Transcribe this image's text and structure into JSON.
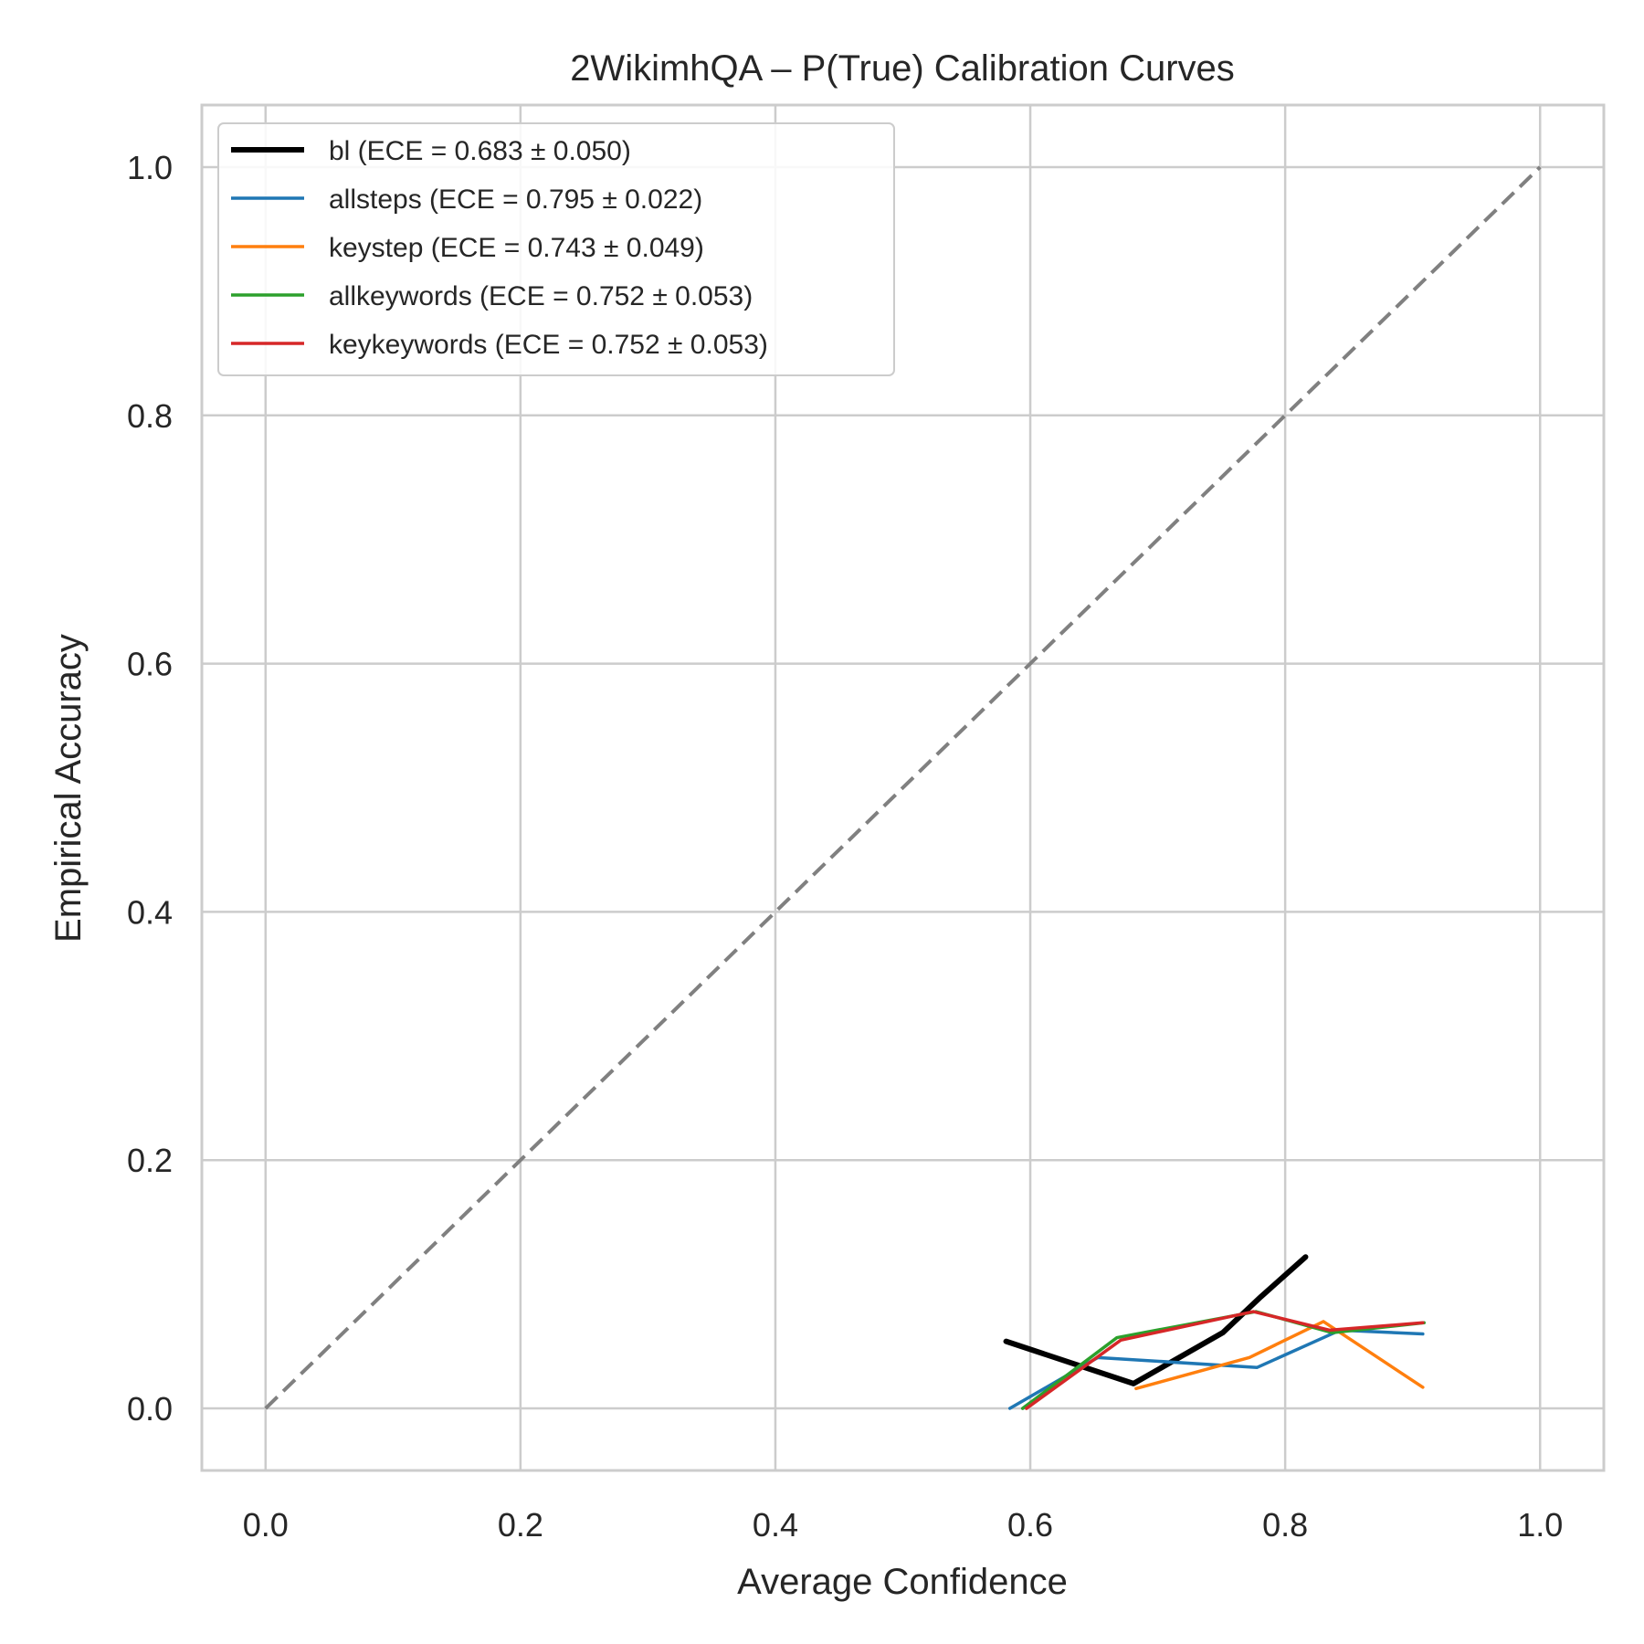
{
  "chart_data": {
    "type": "line",
    "title": "2WikimhQA – P(True) Calibration Curves",
    "xlabel": "Average Confidence",
    "ylabel": "Empirical Accuracy",
    "xlim": [
      -0.05,
      1.05
    ],
    "ylim": [
      -0.05,
      1.05
    ],
    "xticks": [
      0.0,
      0.2,
      0.4,
      0.6,
      0.8,
      1.0
    ],
    "yticks": [
      0.0,
      0.2,
      0.4,
      0.6,
      0.8,
      1.0
    ],
    "tick_labels": [
      "0.0",
      "0.2",
      "0.4",
      "0.6",
      "0.8",
      "1.0"
    ],
    "grid": true,
    "legend_position": "top-left",
    "reference_line": {
      "x": [
        0.0,
        1.0
      ],
      "y": [
        0.0,
        1.0
      ],
      "color": "#808080",
      "style": "dashed"
    },
    "series": [
      {
        "name": "bl (ECE = 0.683 ± 0.050)",
        "color": "#000000",
        "width": 6,
        "x": [
          0.581,
          0.681,
          0.751,
          0.781,
          0.816
        ],
        "y": [
          0.054,
          0.02,
          0.061,
          0.09,
          0.122
        ]
      },
      {
        "name": "allsteps (ECE = 0.795 ± 0.022)",
        "color": "#1f77b4",
        "width": 3.5,
        "x": [
          0.584,
          0.653,
          0.778,
          0.843,
          0.908
        ],
        "y": [
          0.0,
          0.041,
          0.033,
          0.063,
          0.06
        ]
      },
      {
        "name": "keystep (ECE = 0.743 ± 0.049)",
        "color": "#ff7f0e",
        "width": 3.5,
        "x": [
          0.683,
          0.772,
          0.83,
          0.908
        ],
        "y": [
          0.016,
          0.041,
          0.07,
          0.017
        ]
      },
      {
        "name": "allkeywords (ECE = 0.752 ± 0.053)",
        "color": "#2ca02c",
        "width": 3.5,
        "x": [
          0.594,
          0.668,
          0.777,
          0.837,
          0.909
        ],
        "y": [
          0.0,
          0.057,
          0.078,
          0.061,
          0.069
        ]
      },
      {
        "name": "keykeywords (ECE = 0.752 ± 0.053)",
        "color": "#d62728",
        "width": 3.5,
        "x": [
          0.597,
          0.671,
          0.775,
          0.835,
          0.908
        ],
        "y": [
          0.0,
          0.055,
          0.078,
          0.063,
          0.069
        ]
      }
    ]
  }
}
